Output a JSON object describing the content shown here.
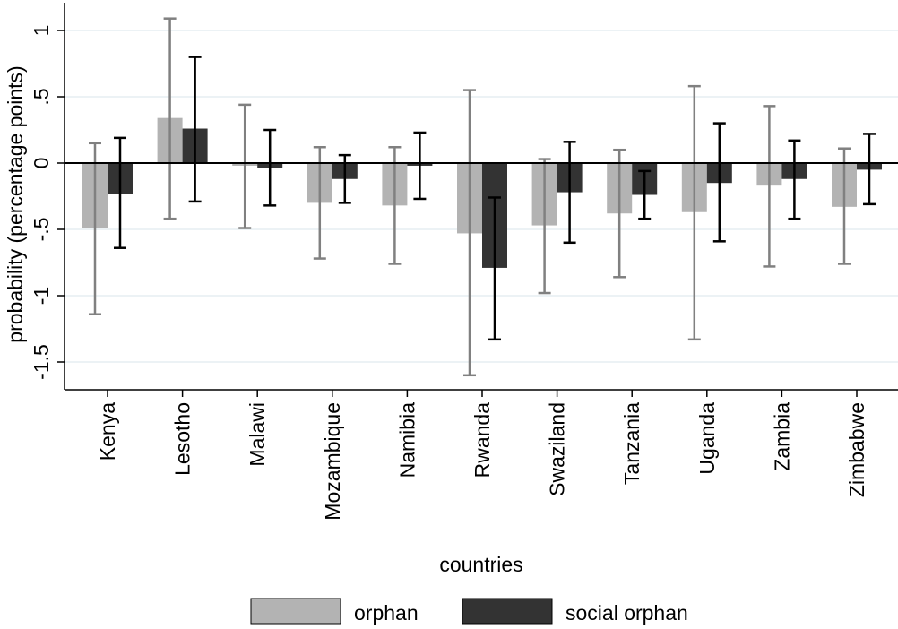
{
  "chart_data": {
    "type": "bar",
    "xlabel": "countries",
    "ylabel": "probability (percentage points)",
    "ylim": [
      -1.7,
      1.2
    ],
    "yticks": [
      1,
      0.5,
      0,
      -0.5,
      -1,
      -1.5
    ],
    "ytick_labels": [
      "1",
      ".5",
      "0",
      "-.5",
      "-1",
      "-1.5"
    ],
    "grid": true,
    "legend_position": "bottom",
    "categories": [
      "Kenya",
      "Lesotho",
      "Malawi",
      "Mozambique",
      "Namibia",
      "Rwanda",
      "Swaziland",
      "Tanzania",
      "Uganda",
      "Zambia",
      "Zimbabwe"
    ],
    "series": [
      {
        "name": "orphan",
        "color": "#b3b3b3",
        "error_color": "#808080",
        "values": [
          -0.49,
          0.34,
          -0.02,
          -0.3,
          -0.32,
          -0.53,
          -0.47,
          -0.38,
          -0.37,
          -0.17,
          -0.33
        ],
        "ci_low": [
          -1.14,
          -0.42,
          -0.49,
          -0.72,
          -0.76,
          -1.6,
          -0.98,
          -0.86,
          -1.33,
          -0.78,
          -0.76
        ],
        "ci_high": [
          0.15,
          1.09,
          0.44,
          0.12,
          0.12,
          0.55,
          0.03,
          0.1,
          0.58,
          0.43,
          0.11
        ]
      },
      {
        "name": "social orphan",
        "color": "#333333",
        "error_color": "#000000",
        "values": [
          -0.23,
          0.26,
          -0.04,
          -0.12,
          -0.02,
          -0.79,
          -0.22,
          -0.24,
          -0.15,
          -0.12,
          -0.05
        ],
        "ci_low": [
          -0.64,
          -0.29,
          -0.32,
          -0.3,
          -0.27,
          -1.33,
          -0.6,
          -0.42,
          -0.59,
          -0.42,
          -0.31
        ],
        "ci_high": [
          0.19,
          0.8,
          0.25,
          0.06,
          0.23,
          -0.26,
          0.16,
          -0.06,
          0.3,
          0.17,
          0.22
        ]
      }
    ]
  }
}
